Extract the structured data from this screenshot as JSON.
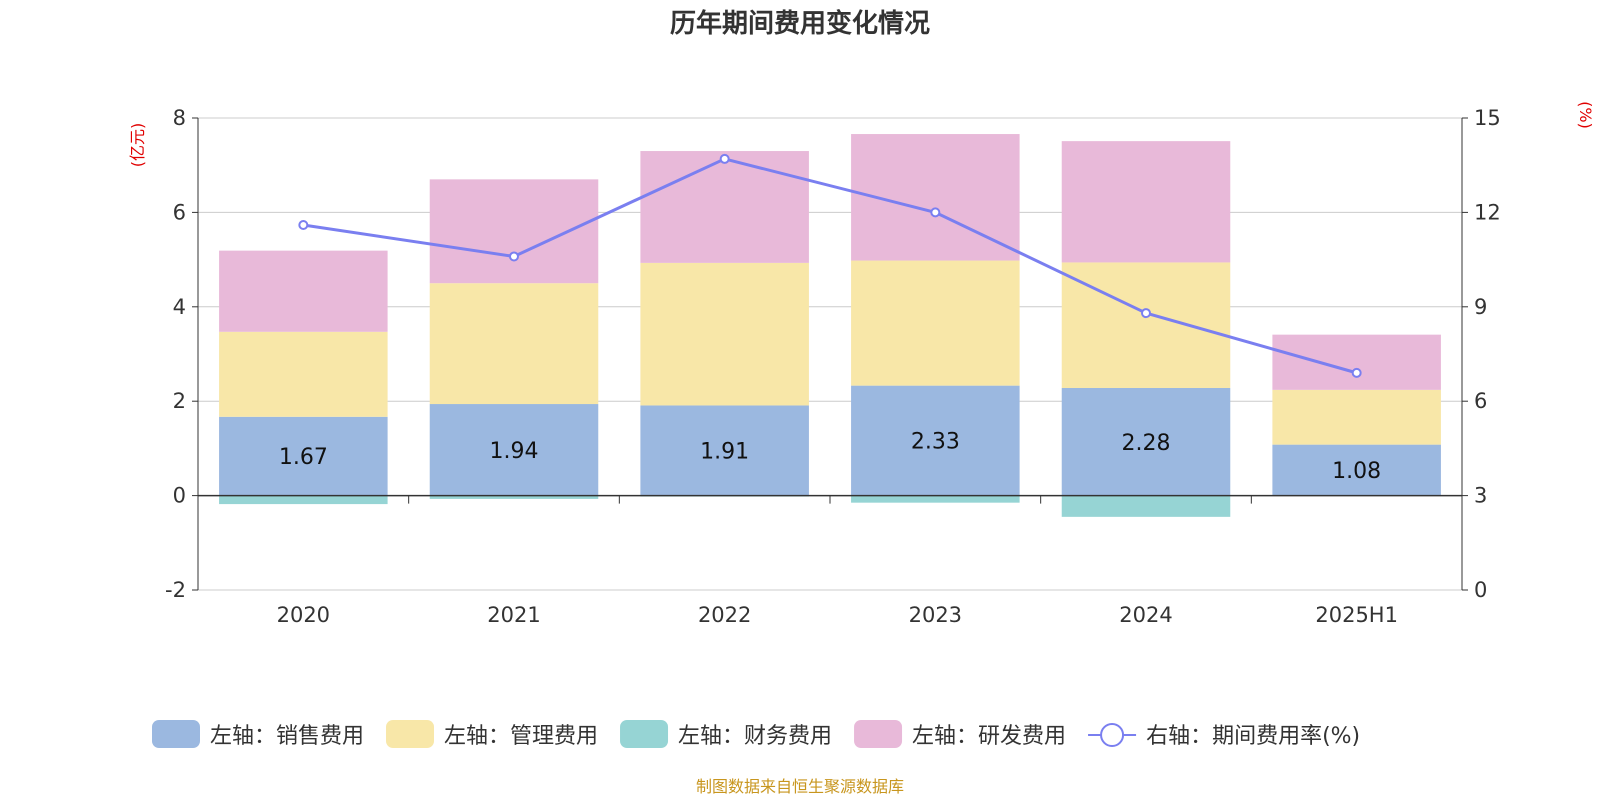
{
  "chart_data": {
    "type": "bar",
    "title": "历年期间费用变化情况",
    "categories": [
      "2020",
      "2021",
      "2022",
      "2023",
      "2024",
      "2025H1"
    ],
    "left_axis": {
      "unit_label": "(亿元)",
      "ylim": [
        -2,
        8
      ],
      "ticks": [
        -2,
        0,
        2,
        4,
        6,
        8
      ]
    },
    "right_axis": {
      "unit_label": "(%)",
      "ylim": [
        0,
        15
      ],
      "ticks": [
        0,
        3,
        6,
        9,
        12,
        15
      ]
    },
    "stacked": true,
    "grid": true,
    "legend_position": "bottom",
    "series": [
      {
        "name": "左轴：销售费用",
        "axis": "left",
        "type": "bar",
        "color": "#9bb8e0",
        "values": [
          1.67,
          1.94,
          1.91,
          2.33,
          2.28,
          1.08
        ],
        "show_labels": true
      },
      {
        "name": "左轴：管理费用",
        "axis": "left",
        "type": "bar",
        "color": "#f8e7a8",
        "values": [
          1.8,
          2.56,
          3.02,
          2.65,
          2.66,
          1.16
        ],
        "show_labels": false
      },
      {
        "name": "左轴：财务费用",
        "axis": "left",
        "type": "bar",
        "color": "#96d4d4",
        "values": [
          -0.18,
          -0.07,
          -0.02,
          -0.15,
          -0.45,
          -0.01
        ],
        "show_labels": false
      },
      {
        "name": "左轴：研发费用",
        "axis": "left",
        "type": "bar",
        "color": "#e8b9d9",
        "values": [
          1.72,
          2.2,
          2.37,
          2.68,
          2.57,
          1.17
        ],
        "show_labels": false
      },
      {
        "name": "右轴：期间费用率(%)",
        "axis": "right",
        "type": "line",
        "color": "#7a7ff0",
        "values": [
          11.6,
          10.6,
          13.7,
          12.0,
          8.8,
          6.9
        ],
        "show_labels": false
      }
    ]
  },
  "source_note": "制图数据来自恒生聚源数据库"
}
